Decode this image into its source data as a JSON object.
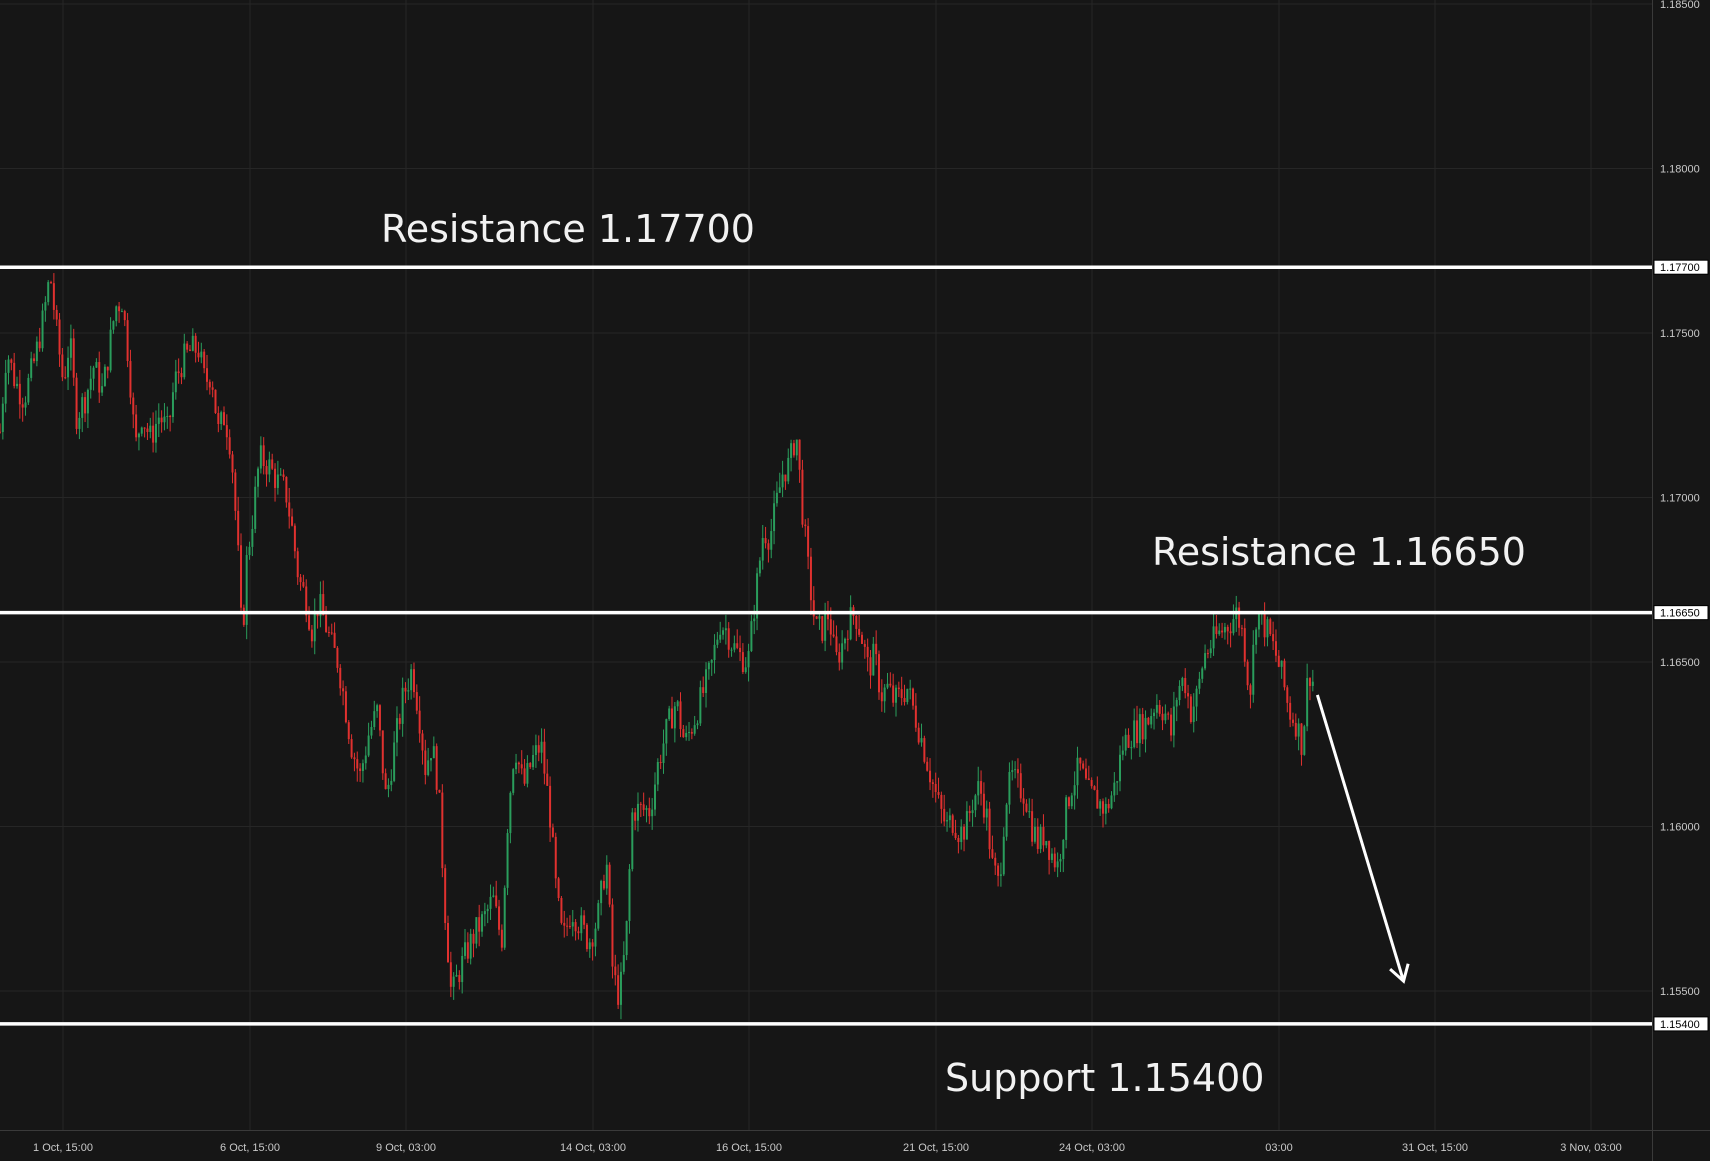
{
  "chart_data": {
    "type": "candlestick",
    "ylim": [
      1.1515,
      1.185
    ],
    "y_ticks": [
      "1.18500",
      "1.18000",
      "1.17500",
      "1.17000",
      "1.16500",
      "1.16000",
      "1.15500"
    ],
    "x_ticks": [
      "1 Oct, 15:00",
      "6 Oct, 15:00",
      "9 Oct, 03:00",
      "14 Oct, 03:00",
      "16 Oct, 15:00",
      "21 Oct, 15:00",
      "24 Oct, 03:00",
      "03:00",
      "31 Oct, 15:00",
      "3 Nov, 03:00"
    ],
    "levels": [
      {
        "value": 1.177,
        "label": "1.17700",
        "annotation": "Resistance 1.17700"
      },
      {
        "value": 1.1665,
        "label": "1.16650",
        "annotation": "Resistance 1.16650"
      },
      {
        "value": 1.154,
        "label": "1.15400",
        "annotation": "Support 1.15400"
      }
    ],
    "price_path": [
      [
        0,
        1.172
      ],
      [
        6,
        1.1745
      ],
      [
        14,
        1.1735
      ],
      [
        22,
        1.173
      ],
      [
        32,
        1.1742
      ],
      [
        40,
        1.1755
      ],
      [
        46,
        1.1768
      ],
      [
        52,
        1.175
      ],
      [
        58,
        1.1735
      ],
      [
        64,
        1.1748
      ],
      [
        70,
        1.1725
      ],
      [
        78,
        1.173
      ],
      [
        86,
        1.174
      ],
      [
        94,
        1.1732
      ],
      [
        100,
        1.1745
      ],
      [
        106,
        1.1758
      ],
      [
        112,
        1.176
      ],
      [
        118,
        1.1742
      ],
      [
        124,
        1.1715
      ],
      [
        130,
        1.1725
      ],
      [
        138,
        1.1718
      ],
      [
        146,
        1.1725
      ],
      [
        154,
        1.172
      ],
      [
        160,
        1.1735
      ],
      [
        168,
        1.1742
      ],
      [
        176,
        1.1745
      ],
      [
        182,
        1.1745
      ],
      [
        188,
        1.1735
      ],
      [
        194,
        1.1738
      ],
      [
        200,
        1.172
      ],
      [
        206,
        1.1725
      ],
      [
        212,
        1.1715
      ],
      [
        218,
        1.1685
      ],
      [
        222,
        1.1655
      ],
      [
        226,
        1.168
      ],
      [
        232,
        1.1695
      ],
      [
        238,
        1.1712
      ],
      [
        246,
        1.171
      ],
      [
        254,
        1.1705
      ],
      [
        262,
        1.1702
      ],
      [
        268,
        1.169
      ],
      [
        274,
        1.1675
      ],
      [
        280,
        1.167
      ],
      [
        286,
        1.166
      ],
      [
        292,
        1.1668
      ],
      [
        298,
        1.1662
      ],
      [
        304,
        1.1655
      ],
      [
        310,
        1.165
      ],
      [
        316,
        1.1638
      ],
      [
        322,
        1.1625
      ],
      [
        330,
        1.1615
      ],
      [
        338,
        1.1628
      ],
      [
        346,
        1.1635
      ],
      [
        354,
        1.1608
      ],
      [
        362,
        1.1625
      ],
      [
        370,
        1.164
      ],
      [
        378,
        1.1648
      ],
      [
        384,
        1.1635
      ],
      [
        390,
        1.1618
      ],
      [
        396,
        1.1625
      ],
      [
        402,
        1.1612
      ],
      [
        408,
        1.1575
      ],
      [
        414,
        1.1548
      ],
      [
        420,
        1.1555
      ],
      [
        428,
        1.1562
      ],
      [
        436,
        1.1568
      ],
      [
        444,
        1.1572
      ],
      [
        452,
        1.1578
      ],
      [
        460,
        1.1565
      ],
      [
        466,
        1.1605
      ],
      [
        472,
        1.1625
      ],
      [
        480,
        1.1612
      ],
      [
        488,
        1.162
      ],
      [
        496,
        1.1625
      ],
      [
        504,
        1.1605
      ],
      [
        510,
        1.158
      ],
      [
        516,
        1.1565
      ],
      [
        524,
        1.1575
      ],
      [
        532,
        1.157
      ],
      [
        540,
        1.1565
      ],
      [
        548,
        1.1572
      ],
      [
        556,
        1.159
      ],
      [
        562,
        1.1555
      ],
      [
        568,
        1.1548
      ],
      [
        574,
        1.1565
      ],
      [
        580,
        1.1605
      ],
      [
        588,
        1.1605
      ],
      [
        596,
        1.1605
      ],
      [
        604,
        1.162
      ],
      [
        612,
        1.163
      ],
      [
        620,
        1.1638
      ],
      [
        628,
        1.1625
      ],
      [
        636,
        1.1632
      ],
      [
        644,
        1.164
      ],
      [
        652,
        1.1648
      ],
      [
        660,
        1.1662
      ],
      [
        666,
        1.166
      ],
      [
        672,
        1.1655
      ],
      [
        678,
        1.1652
      ],
      [
        686,
        1.165
      ],
      [
        692,
        1.1668
      ],
      [
        700,
        1.169
      ],
      [
        706,
        1.1688
      ],
      [
        712,
        1.1698
      ],
      [
        718,
        1.1708
      ],
      [
        724,
        1.171
      ],
      [
        730,
        1.172
      ],
      [
        736,
        1.1695
      ],
      [
        742,
        1.1675
      ],
      [
        748,
        1.166
      ],
      [
        754,
        1.166
      ],
      [
        760,
        1.1665
      ],
      [
        766,
        1.165
      ],
      [
        772,
        1.1655
      ],
      [
        778,
        1.1662
      ],
      [
        784,
        1.1665
      ],
      [
        790,
        1.1658
      ],
      [
        796,
        1.1648
      ],
      [
        802,
        1.1652
      ],
      [
        808,
        1.164
      ],
      [
        814,
        1.1642
      ],
      [
        820,
        1.1638
      ],
      [
        826,
        1.164
      ],
      [
        832,
        1.1642
      ],
      [
        838,
        1.1635
      ],
      [
        844,
        1.1628
      ],
      [
        850,
        1.162
      ],
      [
        856,
        1.1612
      ],
      [
        862,
        1.1605
      ],
      [
        868,
        1.16
      ],
      [
        874,
        1.1602
      ],
      [
        880,
        1.1598
      ],
      [
        886,
        1.16
      ],
      [
        892,
        1.1608
      ],
      [
        898,
        1.1612
      ],
      [
        904,
        1.1605
      ],
      [
        910,
        1.1588
      ],
      [
        916,
        1.1582
      ],
      [
        922,
        1.1608
      ],
      [
        928,
        1.1615
      ],
      [
        934,
        1.1612
      ],
      [
        940,
        1.161
      ],
      [
        946,
        1.16
      ],
      [
        952,
        1.1595
      ],
      [
        958,
        1.1598
      ],
      [
        964,
        1.1592
      ],
      [
        970,
        1.1588
      ],
      [
        976,
        1.1602
      ],
      [
        982,
        1.1612
      ],
      [
        990,
        1.1618
      ],
      [
        998,
        1.161
      ],
      [
        1006,
        1.1608
      ],
      [
        1014,
        1.1605
      ],
      [
        1022,
        1.1612
      ],
      [
        1030,
        1.1625
      ],
      [
        1036,
        1.1628
      ],
      [
        1044,
        1.163
      ],
      [
        1052,
        1.1632
      ],
      [
        1060,
        1.1638
      ],
      [
        1068,
        1.1635
      ],
      [
        1074,
        1.1628
      ],
      [
        1080,
        1.1642
      ],
      [
        1086,
        1.1645
      ],
      [
        1092,
        1.1635
      ],
      [
        1098,
        1.164
      ],
      [
        1104,
        1.1652
      ],
      [
        1110,
        1.1655
      ],
      [
        1116,
        1.1658
      ],
      [
        1122,
        1.166
      ],
      [
        1128,
        1.1662
      ],
      [
        1134,
        1.1665
      ],
      [
        1140,
        1.1658
      ],
      [
        1146,
        1.164
      ],
      [
        1152,
        1.1665
      ],
      [
        1158,
        1.1662
      ],
      [
        1164,
        1.1658
      ],
      [
        1170,
        1.1652
      ],
      [
        1176,
        1.1645
      ],
      [
        1182,
        1.1635
      ],
      [
        1188,
        1.1632
      ],
      [
        1194,
        1.1625
      ],
      [
        1200,
        1.1648
      ],
      [
        1206,
        1.1642
      ]
    ],
    "projection": {
      "from": [
        1208,
        1.164
      ],
      "to": [
        1287,
        1.1553
      ]
    },
    "grid": true
  }
}
